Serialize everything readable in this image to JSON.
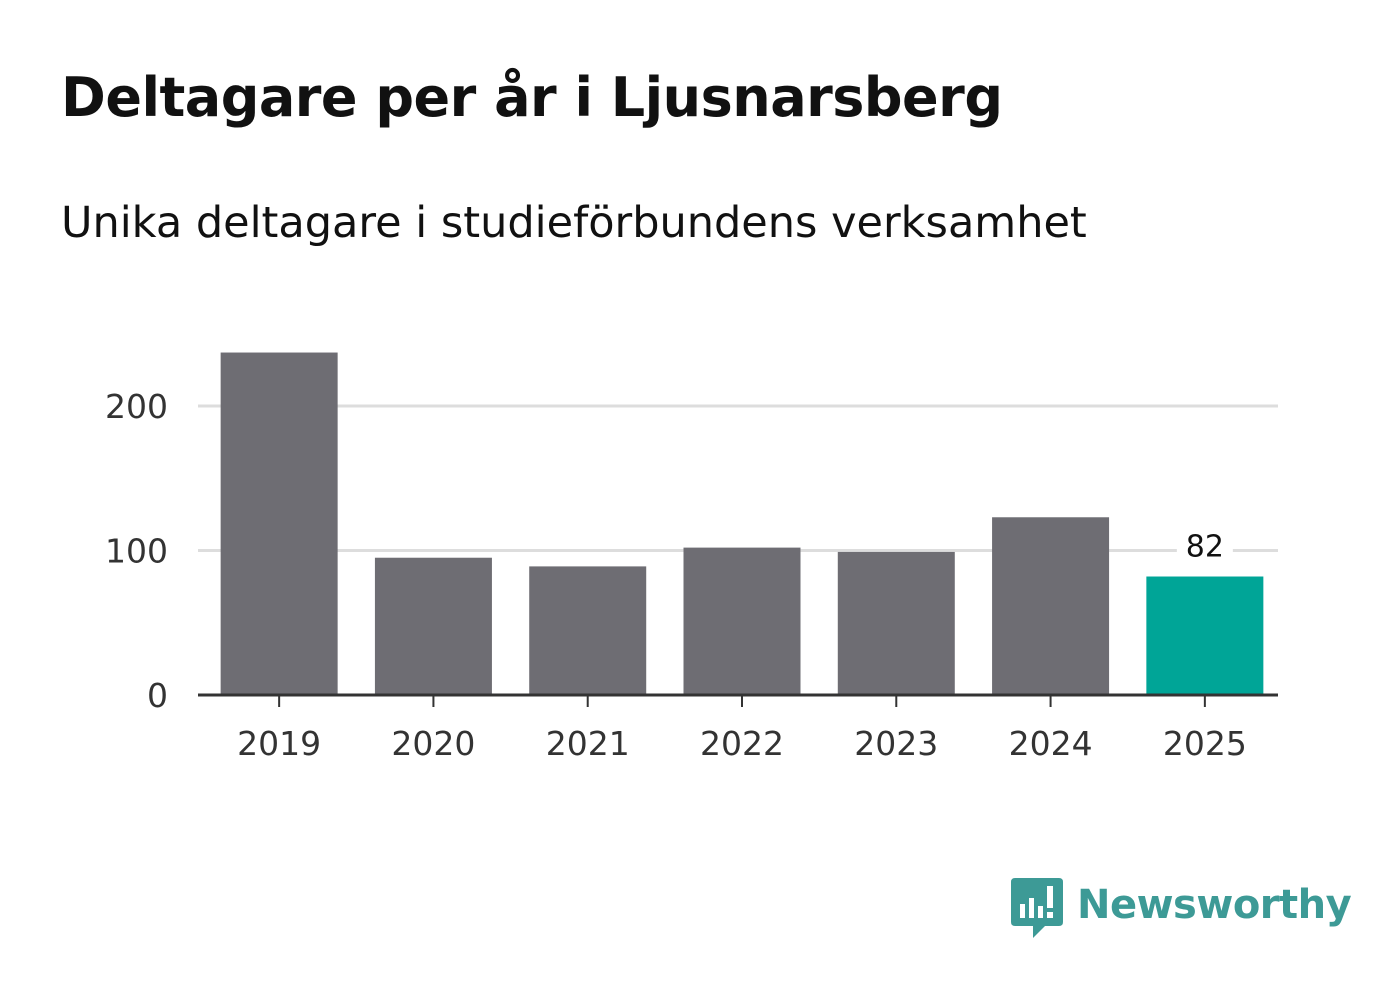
{
  "chart_data": {
    "type": "bar",
    "title": "Deltagare per år i Ljusnarsberg",
    "subtitle": "Unika deltagare i studieförbundens verksamhet",
    "categories": [
      "2019",
      "2020",
      "2021",
      "2022",
      "2023",
      "2024",
      "2025"
    ],
    "values": [
      237,
      95,
      89,
      102,
      99,
      123,
      82
    ],
    "highlight_index": 6,
    "highlight_label": "82",
    "ylim": [
      0,
      200
    ],
    "yticks": [
      0,
      100,
      200
    ],
    "ytick_labels": [
      "0",
      "100",
      "200"
    ],
    "grid": true,
    "xlabel": "",
    "ylabel": "",
    "colors": {
      "bar": "#6e6d73",
      "highlight": "#00a597",
      "grid": "#dddddd",
      "axis": "#333333"
    }
  },
  "brand": {
    "name": "Newsworthy",
    "icon": "newsworthy-logo-icon",
    "color": "#3d9a96"
  }
}
